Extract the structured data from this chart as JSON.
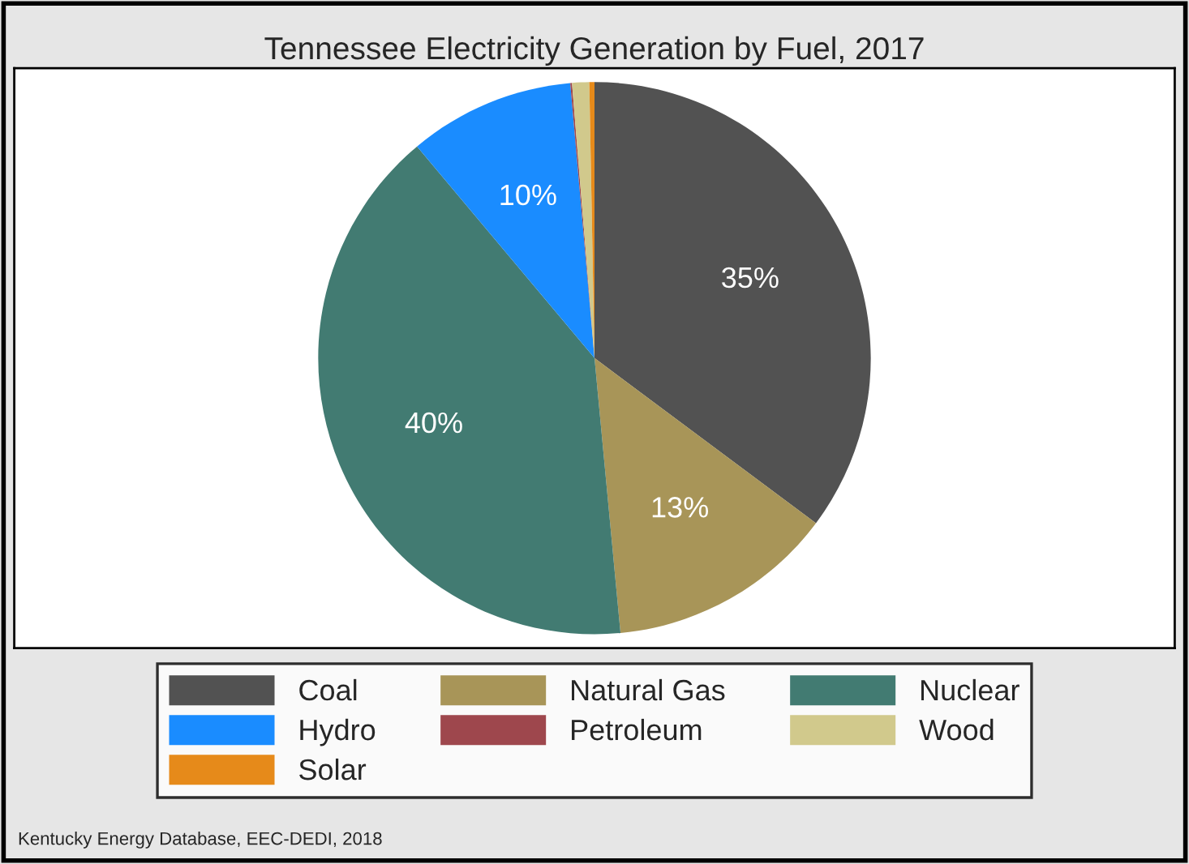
{
  "chart_data": {
    "type": "pie",
    "title": "Tennessee Electricity Generation by Fuel, 2017",
    "categories": [
      "Coal",
      "Natural Gas",
      "Nuclear",
      "Hydro",
      "Petroleum",
      "Wood",
      "Solar"
    ],
    "values": [
      35.2,
      13.3,
      40.4,
      9.7,
      0.1,
      1.0,
      0.3
    ],
    "colors": [
      "#525252",
      "#a89558",
      "#427b72",
      "#1a8cff",
      "#9e474d",
      "#d1c98c",
      "#e68a1a"
    ],
    "value_labels": [
      "35%",
      "13%",
      "40%",
      "10%",
      null,
      null,
      null
    ],
    "legend": "bottom",
    "annotations": [
      "Kentucky Energy Database, EEC-DEDI, 2018"
    ]
  }
}
